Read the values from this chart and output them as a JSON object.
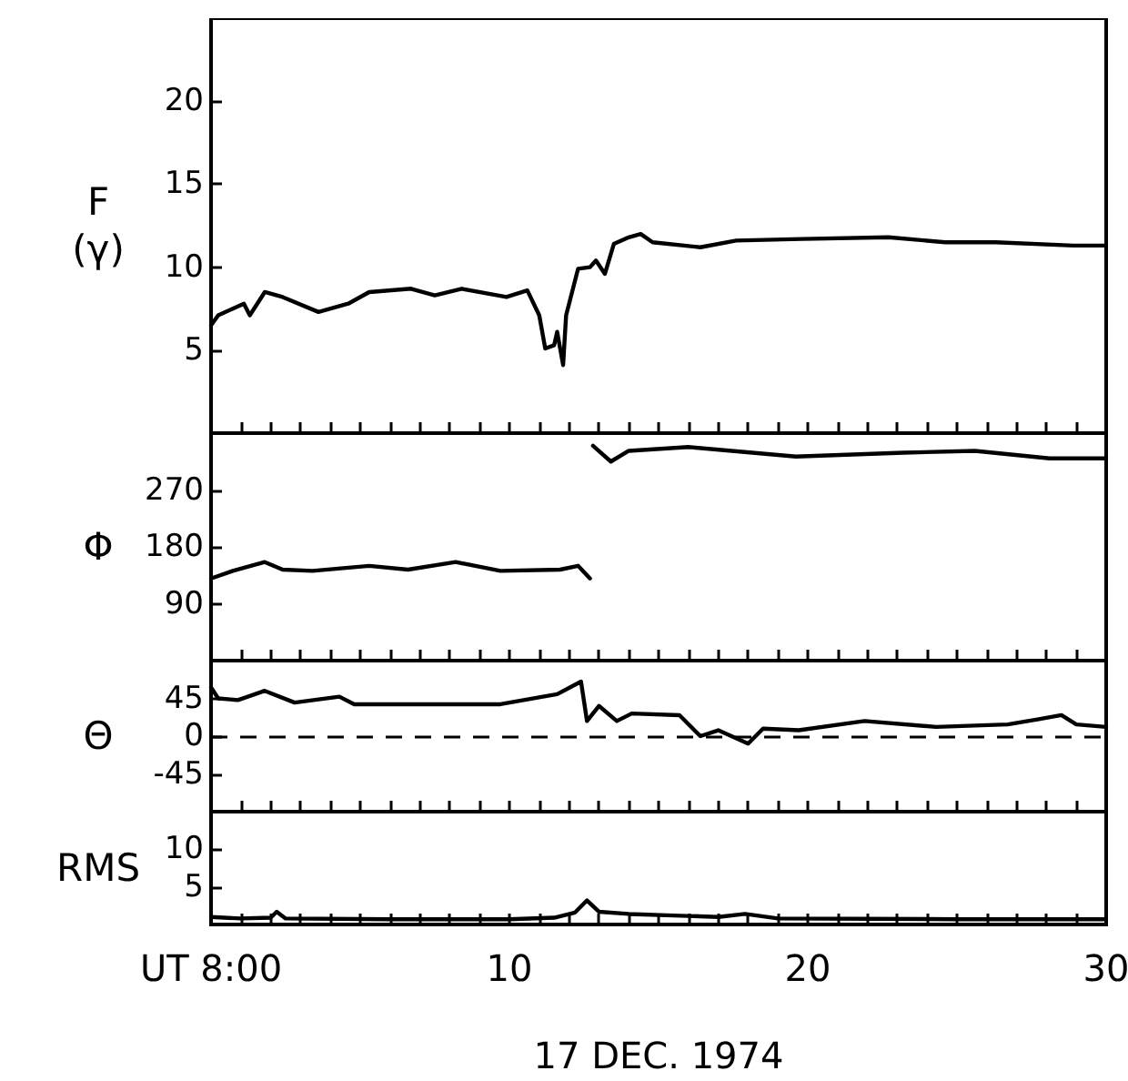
{
  "chart_data": [
    {
      "type": "line",
      "ylabel": "F\n(γ)",
      "xlim": [
        0,
        30
      ],
      "ylim": [
        0,
        25
      ],
      "yticks": [
        5,
        10,
        15,
        20
      ],
      "tick_labels": "y",
      "marker": "none",
      "line_style": "solid",
      "grid": false,
      "xticks": [
        {
          "value": 0,
          "label": null
        },
        {
          "value": 1,
          "label": null
        },
        {
          "value": 2,
          "label": null
        },
        {
          "value": 3,
          "label": null
        },
        {
          "value": 4,
          "label": null
        },
        {
          "value": 5,
          "label": null
        },
        {
          "value": 6,
          "label": null
        },
        {
          "value": 7,
          "label": null
        },
        {
          "value": 8,
          "label": null
        },
        {
          "value": 9,
          "label": null
        },
        {
          "value": 10,
          "label": null
        },
        {
          "value": 11,
          "label": null
        },
        {
          "value": 12,
          "label": null
        },
        {
          "value": 13,
          "label": null
        },
        {
          "value": 14,
          "label": null
        },
        {
          "value": 15,
          "label": null
        },
        {
          "value": 16,
          "label": null
        },
        {
          "value": 17,
          "label": null
        },
        {
          "value": 18,
          "label": null
        },
        {
          "value": 19,
          "label": null
        },
        {
          "value": 20,
          "label": null
        },
        {
          "value": 21,
          "label": null
        },
        {
          "value": 22,
          "label": null
        },
        {
          "value": 23,
          "label": null
        },
        {
          "value": 24,
          "label": null
        },
        {
          "value": 25,
          "label": null
        },
        {
          "value": 26,
          "label": null
        },
        {
          "value": 27,
          "label": null
        },
        {
          "value": 28,
          "label": null
        },
        {
          "value": 29,
          "label": null
        },
        {
          "value": 30,
          "label": null
        }
      ],
      "series": [
        {
          "color": "#000000",
          "x": [
            0,
            0.24,
            0.73,
            1.1,
            1.3,
            1.8,
            2.4,
            3.6,
            4.6,
            5.3,
            6.7,
            7.5,
            8.4,
            9.9,
            10.6,
            11.0,
            11.2,
            11.5,
            11.6,
            11.8,
            11.9,
            12.3,
            12.7,
            12.9,
            13.2,
            13.5,
            14.0,
            14.4,
            14.8,
            16.4,
            17.6,
            19.8,
            22.7,
            24.6,
            26.3,
            28.9,
            30
          ],
          "values": [
            6.5,
            7.1,
            7.5,
            7.8,
            7.1,
            8.5,
            8.2,
            7.3,
            7.8,
            8.5,
            8.7,
            8.3,
            8.7,
            8.2,
            8.6,
            7.1,
            5.1,
            5.3,
            6.1,
            4.1,
            7.1,
            9.9,
            10.0,
            10.4,
            9.6,
            11.4,
            11.8,
            12.0,
            11.5,
            11.2,
            11.6,
            11.7,
            11.8,
            11.5,
            11.5,
            11.3,
            11.3
          ]
        }
      ]
    },
    {
      "type": "line",
      "ylabel": "Φ",
      "xlim": [
        0,
        30
      ],
      "ylim": [
        0,
        360
      ],
      "yticks": [
        90,
        180,
        270
      ],
      "tick_labels": "y",
      "marker": "none",
      "line_style": "solid",
      "grid": false,
      "xticks": [
        {
          "value": 0,
          "label": null
        },
        {
          "value": 1,
          "label": null
        },
        {
          "value": 2,
          "label": null
        },
        {
          "value": 3,
          "label": null
        },
        {
          "value": 4,
          "label": null
        },
        {
          "value": 5,
          "label": null
        },
        {
          "value": 6,
          "label": null
        },
        {
          "value": 7,
          "label": null
        },
        {
          "value": 8,
          "label": null
        },
        {
          "value": 9,
          "label": null
        },
        {
          "value": 10,
          "label": null
        },
        {
          "value": 11,
          "label": null
        },
        {
          "value": 12,
          "label": null
        },
        {
          "value": 13,
          "label": null
        },
        {
          "value": 14,
          "label": null
        },
        {
          "value": 15,
          "label": null
        },
        {
          "value": 16,
          "label": null
        },
        {
          "value": 17,
          "label": null
        },
        {
          "value": 18,
          "label": null
        },
        {
          "value": 19,
          "label": null
        },
        {
          "value": 20,
          "label": null
        },
        {
          "value": 21,
          "label": null
        },
        {
          "value": 22,
          "label": null
        },
        {
          "value": 23,
          "label": null
        },
        {
          "value": 24,
          "label": null
        },
        {
          "value": 25,
          "label": null
        },
        {
          "value": 26,
          "label": null
        },
        {
          "value": 27,
          "label": null
        },
        {
          "value": 28,
          "label": null
        },
        {
          "value": 29,
          "label": null
        },
        {
          "value": 30,
          "label": null
        }
      ],
      "series": [
        {
          "color": "#000000",
          "x": [
            0,
            0.73,
            1.8,
            2.4,
            3.4,
            5.3,
            6.6,
            8.2,
            9.7,
            11.7,
            12.3,
            12.7,
            12.75,
            12.8,
            13.4,
            14.0,
            16.0,
            19.6,
            23.2,
            25.6,
            28.1,
            30
          ],
          "values": [
            130,
            142,
            156,
            144,
            142,
            150,
            144,
            156,
            142,
            144,
            150,
            130,
            null,
            340,
            315,
            332,
            338,
            323,
            329,
            332,
            320,
            320
          ]
        }
      ]
    },
    {
      "type": "line",
      "ylabel": "Θ",
      "xlim": [
        0,
        30
      ],
      "ylim": [
        -90,
        90
      ],
      "yticks": [
        -45,
        0,
        45
      ],
      "tick_labels": "y",
      "marker": "none",
      "line_style": "solid",
      "grid": false,
      "ref_lines": [
        {
          "axis": "y",
          "value": 0,
          "line_style": "dashed",
          "color": "#000000"
        }
      ],
      "xticks": [
        {
          "value": 0,
          "label": null
        },
        {
          "value": 1,
          "label": null
        },
        {
          "value": 2,
          "label": null
        },
        {
          "value": 3,
          "label": null
        },
        {
          "value": 4,
          "label": null
        },
        {
          "value": 5,
          "label": null
        },
        {
          "value": 6,
          "label": null
        },
        {
          "value": 7,
          "label": null
        },
        {
          "value": 8,
          "label": null
        },
        {
          "value": 9,
          "label": null
        },
        {
          "value": 10,
          "label": null
        },
        {
          "value": 11,
          "label": null
        },
        {
          "value": 12,
          "label": null
        },
        {
          "value": 13,
          "label": null
        },
        {
          "value": 14,
          "label": null
        },
        {
          "value": 15,
          "label": null
        },
        {
          "value": 16,
          "label": null
        },
        {
          "value": 17,
          "label": null
        },
        {
          "value": 18,
          "label": null
        },
        {
          "value": 19,
          "label": null
        },
        {
          "value": 20,
          "label": null
        },
        {
          "value": 21,
          "label": null
        },
        {
          "value": 22,
          "label": null
        },
        {
          "value": 23,
          "label": null
        },
        {
          "value": 24,
          "label": null
        },
        {
          "value": 25,
          "label": null
        },
        {
          "value": 26,
          "label": null
        },
        {
          "value": 27,
          "label": null
        },
        {
          "value": 28,
          "label": null
        },
        {
          "value": 29,
          "label": null
        },
        {
          "value": 30,
          "label": null
        }
      ],
      "series": [
        {
          "color": "#000000",
          "x": [
            0,
            0.24,
            0.9,
            1.8,
            2.8,
            4.3,
            4.8,
            7.2,
            9.7,
            11.6,
            12.4,
            12.6,
            13.0,
            13.6,
            14.1,
            15.7,
            16.4,
            17.0,
            18.0,
            18.5,
            19.7,
            21.9,
            24.3,
            26.7,
            27.7,
            28.5,
            29.0,
            30
          ],
          "values": [
            58,
            45,
            43,
            54,
            40,
            47,
            38,
            38,
            38,
            50,
            65,
            18,
            36,
            18,
            27,
            25,
            0,
            7,
            -9,
            9,
            7,
            18,
            11,
            14,
            20,
            25,
            14,
            11
          ]
        }
      ]
    },
    {
      "type": "line",
      "ylabel": "RMS",
      "xlabel": "17 DEC. 1974",
      "xlim": [
        0,
        30
      ],
      "ylim": [
        0,
        15
      ],
      "yticks": [
        5,
        10
      ],
      "marker": "none",
      "line_style": "solid",
      "grid": false,
      "xticks": [
        {
          "value": 0,
          "label": "UT 8:00"
        },
        {
          "value": 1,
          "label": null
        },
        {
          "value": 2,
          "label": null
        },
        {
          "value": 3,
          "label": null
        },
        {
          "value": 4,
          "label": null
        },
        {
          "value": 5,
          "label": null
        },
        {
          "value": 6,
          "label": null
        },
        {
          "value": 7,
          "label": null
        },
        {
          "value": 8,
          "label": null
        },
        {
          "value": 9,
          "label": null
        },
        10,
        {
          "value": 11,
          "label": null
        },
        {
          "value": 12,
          "label": null
        },
        {
          "value": 13,
          "label": null
        },
        {
          "value": 14,
          "label": null
        },
        {
          "value": 15,
          "label": null
        },
        {
          "value": 16,
          "label": null
        },
        {
          "value": 17,
          "label": null
        },
        {
          "value": 18,
          "label": null
        },
        {
          "value": 19,
          "label": null
        },
        20,
        {
          "value": 21,
          "label": null
        },
        {
          "value": 22,
          "label": null
        },
        {
          "value": 23,
          "label": null
        },
        {
          "value": 24,
          "label": null
        },
        {
          "value": 25,
          "label": null
        },
        {
          "value": 26,
          "label": null
        },
        {
          "value": 27,
          "label": null
        },
        {
          "value": 28,
          "label": null
        },
        {
          "value": 29,
          "label": null
        },
        30
      ],
      "series": [
        {
          "color": "#000000",
          "x": [
            0,
            1,
            2,
            2.2,
            2.5,
            6,
            10,
            11.5,
            12.2,
            12.6,
            13,
            14,
            15.5,
            17,
            17.9,
            19,
            25,
            30
          ],
          "values": [
            1.0,
            0.8,
            0.9,
            1.7,
            0.8,
            0.7,
            0.7,
            0.9,
            1.6,
            3.2,
            1.7,
            1.4,
            1.2,
            1.0,
            1.4,
            0.8,
            0.7,
            0.7
          ]
        }
      ]
    }
  ]
}
